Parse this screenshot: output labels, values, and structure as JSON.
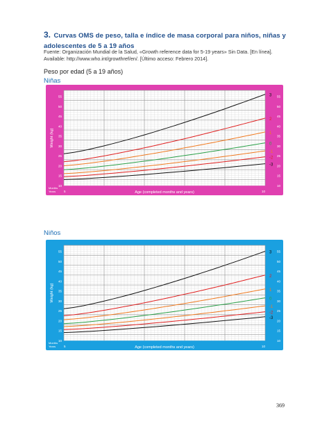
{
  "heading": {
    "number": "3.",
    "title_part1": "Curvas OMS de peso, talla e índice de masa corporal para niños, niñas y",
    "title_part2": "adolescentes de 5 a 19 años"
  },
  "source": {
    "line1": "Fuente: Organización Mundial de la Salud, «Growth reference data for 5-19 years» Sin Data. [En línea].",
    "line2": "Available: http://www.who.int/growthref/en/. [Último acceso: Febrero 2014]."
  },
  "subheading": "Peso por edad (5 a 19 años)",
  "charts": [
    {
      "label": "Niñas",
      "background": "#e040b0",
      "y_axis_label": "Weight (kg)",
      "x_axis_label": "Age (completed months and years)",
      "months_label": "Months",
      "years_label": "Years",
      "x_tick_start": "5",
      "x_tick_end": "10",
      "y_ticks": [
        "55",
        "50",
        "45",
        "40",
        "35",
        "30",
        "25",
        "20",
        "15",
        "10"
      ],
      "curve_labels": [
        "3",
        "2",
        "1",
        "0",
        "-1",
        "-2",
        "-3"
      ],
      "curve_colors": [
        "#111111",
        "#e02020",
        "#f07a20",
        "#2aa048",
        "#f07a20",
        "#e02020",
        "#111111"
      ],
      "chart_data": {
        "type": "line",
        "x": [
          5,
          10
        ],
        "series": [
          {
            "name": "3",
            "values": [
              26,
              56
            ]
          },
          {
            "name": "2",
            "values": [
              22,
              44
            ]
          },
          {
            "name": "1",
            "values": [
              20,
              37
            ]
          },
          {
            "name": "0",
            "values": [
              18,
              31.5
            ]
          },
          {
            "name": "-1",
            "values": [
              16,
              27.5
            ]
          },
          {
            "name": "-2",
            "values": [
              14.5,
              24.5
            ]
          },
          {
            "name": "-3",
            "values": [
              13,
              21
            ]
          }
        ],
        "ylim": [
          10,
          58
        ]
      }
    },
    {
      "label": "Niños",
      "background": "#1aa0e0",
      "y_axis_label": "Weight (kg)",
      "x_axis_label": "Age (completed months and years)",
      "months_label": "Months",
      "years_label": "Years",
      "x_tick_start": "5",
      "x_tick_end": "10",
      "y_ticks": [
        "55",
        "50",
        "45",
        "40",
        "35",
        "30",
        "25",
        "20",
        "15",
        "10"
      ],
      "curve_labels": [
        "3",
        "2",
        "1",
        "0",
        "-1",
        "-2",
        "-3"
      ],
      "curve_colors": [
        "#111111",
        "#e02020",
        "#f07a20",
        "#2aa048",
        "#f07a20",
        "#e02020",
        "#111111"
      ],
      "chart_data": {
        "type": "line",
        "x": [
          5,
          10
        ],
        "series": [
          {
            "name": "3",
            "values": [
              26,
              55
            ]
          },
          {
            "name": "2",
            "values": [
              22.5,
              43
            ]
          },
          {
            "name": "1",
            "values": [
              20.5,
              36
            ]
          },
          {
            "name": "0",
            "values": [
              18.5,
              31.5
            ]
          },
          {
            "name": "-1",
            "values": [
              17,
              27.5
            ]
          },
          {
            "name": "-2",
            "values": [
              15.5,
              24.5
            ]
          },
          {
            "name": "-3",
            "values": [
              14,
              22
            ]
          }
        ],
        "ylim": [
          10,
          58
        ]
      }
    }
  ],
  "page_number": "369"
}
